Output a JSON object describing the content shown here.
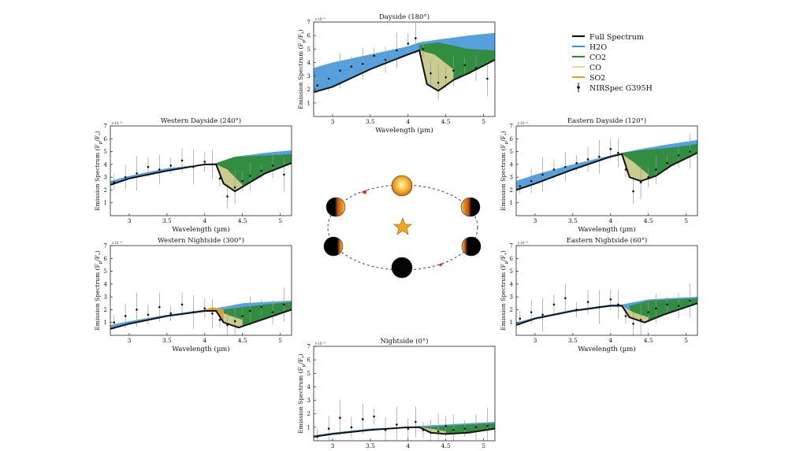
{
  "common": {
    "xlabel": "Wavelength (µm)",
    "ylabel": "Emission Spectrum (F",
    "ylabel_sub1": "p",
    "ylabel_mid": "/F",
    "ylabel_sub2": "*",
    "ylabel_end": ")",
    "exponent": "×10⁻⁴",
    "xticks": [
      "3",
      "3.5",
      "4",
      "4.5",
      "5"
    ],
    "yticks": [
      "1",
      "2",
      "3",
      "4",
      "5",
      "6",
      "7"
    ]
  },
  "legend": {
    "entries": [
      {
        "label": "Full Spectrum",
        "color": "#111111",
        "kind": "line"
      },
      {
        "label": "H2O",
        "color": "#3a8fd8",
        "kind": "line"
      },
      {
        "label": "CO2",
        "color": "#2e8b2e",
        "kind": "line"
      },
      {
        "label": "CO",
        "color": "#e6d9a0",
        "kind": "line"
      },
      {
        "label": "SO2",
        "color": "#e0a020",
        "kind": "line"
      },
      {
        "label": "NIRSpec G395H",
        "color": "#111111",
        "kind": "errorbar"
      }
    ]
  },
  "orbit": {
    "orbit_color": "#444444",
    "star_color": "#f0a820",
    "arrow_color": "#d04020"
  },
  "chart_data": [
    {
      "id": "dayside",
      "type": "area",
      "title": "Dayside (180°)",
      "xlim": [
        2.75,
        5.15
      ],
      "ylim": [
        0,
        7
      ],
      "full": {
        "x": [
          2.75,
          3.0,
          3.5,
          4.0,
          4.15,
          4.25,
          4.4,
          4.6,
          4.8,
          5.15
        ],
        "y": [
          1.8,
          2.2,
          3.5,
          4.6,
          4.9,
          2.4,
          1.9,
          2.7,
          3.2,
          4.2
        ]
      },
      "band_top": {
        "x": [
          2.75,
          3.0,
          3.5,
          4.0,
          4.15,
          4.4,
          4.8,
          5.15
        ],
        "y": [
          3.6,
          4.0,
          4.6,
          5.2,
          5.5,
          5.7,
          6.0,
          6.2
        ]
      },
      "co2_top": {
        "x": [
          4.15,
          4.4,
          4.8,
          5.15
        ],
        "y": [
          5.3,
          5.5,
          5.0,
          4.9
        ]
      },
      "co_top": {
        "x": [
          4.15,
          4.35,
          4.6
        ],
        "y": [
          4.9,
          4.6,
          3.5
        ]
      },
      "so2_top": null,
      "points": [
        [
          2.8,
          2.3
        ],
        [
          2.95,
          2.8
        ],
        [
          3.1,
          3.4
        ],
        [
          3.25,
          3.7
        ],
        [
          3.4,
          3.9
        ],
        [
          3.55,
          4.5
        ],
        [
          3.7,
          4.2
        ],
        [
          3.85,
          4.9
        ],
        [
          4.0,
          5.4
        ],
        [
          4.1,
          5.8
        ],
        [
          4.2,
          5.0
        ],
        [
          4.3,
          3.2
        ],
        [
          4.4,
          2.5
        ],
        [
          4.5,
          2.9
        ],
        [
          4.6,
          3.4
        ],
        [
          4.75,
          3.8
        ],
        [
          4.9,
          3.6
        ],
        [
          5.05,
          2.8
        ]
      ]
    },
    {
      "id": "western-dayside",
      "type": "area",
      "title": "Western Dayside (240°)",
      "xlim": [
        2.75,
        5.15
      ],
      "ylim": [
        0,
        7
      ],
      "full": {
        "x": [
          2.75,
          3.0,
          3.5,
          4.0,
          4.15,
          4.25,
          4.4,
          4.6,
          4.8,
          5.15
        ],
        "y": [
          2.4,
          2.9,
          3.5,
          4.0,
          4.0,
          2.5,
          1.9,
          2.6,
          3.3,
          4.1
        ]
      },
      "band_top": {
        "x": [
          2.75,
          3.0,
          3.5,
          4.0,
          4.15,
          4.4,
          4.8,
          5.15
        ],
        "y": [
          2.7,
          3.1,
          3.7,
          4.0,
          4.1,
          4.6,
          4.9,
          5.1
        ]
      },
      "co2_top": {
        "x": [
          4.15,
          4.4,
          4.8,
          5.15
        ],
        "y": [
          4.1,
          4.6,
          4.7,
          4.8
        ]
      },
      "co_top": {
        "x": [
          4.15,
          4.3,
          4.5
        ],
        "y": [
          4.0,
          3.6,
          2.4
        ]
      },
      "so2_top": null,
      "points": [
        [
          2.8,
          2.6
        ],
        [
          2.95,
          3.0
        ],
        [
          3.1,
          3.3
        ],
        [
          3.25,
          3.8
        ],
        [
          3.4,
          3.6
        ],
        [
          3.55,
          3.9
        ],
        [
          3.7,
          4.3
        ],
        [
          3.85,
          3.8
        ],
        [
          4.0,
          4.2
        ],
        [
          4.1,
          4.0
        ],
        [
          4.2,
          2.9
        ],
        [
          4.3,
          1.5
        ],
        [
          4.4,
          2.2
        ],
        [
          4.5,
          2.7
        ],
        [
          4.6,
          3.1
        ],
        [
          4.75,
          3.5
        ],
        [
          4.9,
          3.9
        ],
        [
          5.05,
          3.2
        ]
      ]
    },
    {
      "id": "eastern-dayside",
      "type": "area",
      "title": "Eastern Dayside (120°)",
      "xlim": [
        2.75,
        5.15
      ],
      "ylim": [
        0,
        7
      ],
      "full": {
        "x": [
          2.75,
          3.0,
          3.5,
          4.0,
          4.15,
          4.25,
          4.4,
          4.6,
          4.8,
          5.15
        ],
        "y": [
          2.0,
          2.5,
          3.6,
          4.6,
          4.8,
          3.0,
          2.7,
          3.1,
          3.9,
          4.9
        ]
      },
      "band_top": {
        "x": [
          2.75,
          3.0,
          3.5,
          4.0,
          4.15,
          4.4,
          4.8,
          5.15
        ],
        "y": [
          2.7,
          3.2,
          4.0,
          4.7,
          4.9,
          5.2,
          5.6,
          5.9
        ]
      },
      "co2_top": {
        "x": [
          4.15,
          4.4,
          4.8,
          5.15
        ],
        "y": [
          4.9,
          5.1,
          5.3,
          5.6
        ]
      },
      "co_top": {
        "x": [
          4.15,
          4.3,
          4.5
        ],
        "y": [
          4.8,
          4.2,
          3.2
        ]
      },
      "so2_top": null,
      "points": [
        [
          2.8,
          2.3
        ],
        [
          2.95,
          2.7
        ],
        [
          3.1,
          3.2
        ],
        [
          3.25,
          3.6
        ],
        [
          3.4,
          3.8
        ],
        [
          3.55,
          4.1
        ],
        [
          3.7,
          4.4
        ],
        [
          3.85,
          4.6
        ],
        [
          4.0,
          5.2
        ],
        [
          4.1,
          4.9
        ],
        [
          4.2,
          3.6
        ],
        [
          4.3,
          1.9
        ],
        [
          4.4,
          2.6
        ],
        [
          4.5,
          3.0
        ],
        [
          4.6,
          3.6
        ],
        [
          4.75,
          4.1
        ],
        [
          4.9,
          4.7
        ],
        [
          5.05,
          5.0
        ]
      ]
    },
    {
      "id": "western-nightside",
      "type": "area",
      "title": "Western Nightside (300°)",
      "xlim": [
        2.75,
        5.15
      ],
      "ylim": [
        0,
        7
      ],
      "full": {
        "x": [
          2.75,
          3.0,
          3.5,
          4.0,
          4.15,
          4.25,
          4.45,
          4.7,
          5.15
        ],
        "y": [
          0.5,
          0.9,
          1.5,
          1.9,
          1.9,
          1.0,
          0.6,
          1.1,
          2.0
        ]
      },
      "band_top": {
        "x": [
          2.75,
          3.0,
          3.5,
          4.0,
          4.15,
          4.5,
          4.8,
          5.15
        ],
        "y": [
          0.8,
          1.1,
          1.6,
          2.0,
          2.1,
          2.5,
          2.6,
          2.7
        ]
      },
      "co2_top": {
        "x": [
          4.25,
          4.5,
          4.8,
          5.15
        ],
        "y": [
          2.0,
          2.2,
          2.4,
          2.6
        ]
      },
      "co_top": {
        "x": [
          4.15,
          4.3,
          4.5
        ],
        "y": [
          2.0,
          1.6,
          1.2
        ]
      },
      "so2_top": {
        "x": [
          3.95,
          4.1,
          4.25
        ],
        "y": [
          1.9,
          2.2,
          2.0
        ]
      },
      "points": [
        [
          2.8,
          1.0
        ],
        [
          2.95,
          1.5
        ],
        [
          3.1,
          2.0
        ],
        [
          3.25,
          1.6
        ],
        [
          3.4,
          2.2
        ],
        [
          3.55,
          1.7
        ],
        [
          3.7,
          2.4
        ],
        [
          3.85,
          1.8
        ],
        [
          4.0,
          2.1
        ],
        [
          4.1,
          1.7
        ],
        [
          4.2,
          1.2
        ],
        [
          4.3,
          0.8
        ],
        [
          4.4,
          1.1
        ],
        [
          4.5,
          1.5
        ],
        [
          4.6,
          1.9
        ],
        [
          4.75,
          2.2
        ],
        [
          4.9,
          1.8
        ],
        [
          5.05,
          2.4
        ]
      ]
    },
    {
      "id": "eastern-nightside",
      "type": "area",
      "title": "Eastern Nightside (60°)",
      "xlim": [
        2.75,
        5.15
      ],
      "ylim": [
        0,
        7
      ],
      "full": {
        "x": [
          2.75,
          3.0,
          3.5,
          4.0,
          4.15,
          4.25,
          4.45,
          4.7,
          5.15
        ],
        "y": [
          0.8,
          1.3,
          1.9,
          2.3,
          2.3,
          1.4,
          1.0,
          1.6,
          2.5
        ]
      },
      "band_top": {
        "x": [
          2.75,
          3.0,
          3.5,
          4.0,
          4.15,
          4.5,
          4.8,
          5.15
        ],
        "y": [
          1.0,
          1.4,
          2.0,
          2.4,
          2.4,
          2.8,
          2.9,
          3.0
        ]
      },
      "co2_top": {
        "x": [
          4.25,
          4.5,
          4.8,
          5.15
        ],
        "y": [
          2.3,
          2.7,
          2.8,
          2.9
        ]
      },
      "co_top": {
        "x": [
          4.15,
          4.3,
          4.5
        ],
        "y": [
          2.3,
          1.8,
          1.4
        ]
      },
      "so2_top": null,
      "points": [
        [
          2.8,
          1.3
        ],
        [
          2.95,
          1.8
        ],
        [
          3.1,
          1.6
        ],
        [
          3.25,
          2.4
        ],
        [
          3.4,
          2.9
        ],
        [
          3.55,
          2.0
        ],
        [
          3.7,
          2.6
        ],
        [
          3.85,
          2.2
        ],
        [
          4.0,
          2.8
        ],
        [
          4.1,
          2.4
        ],
        [
          4.2,
          1.5
        ],
        [
          4.3,
          0.9
        ],
        [
          4.4,
          1.2
        ],
        [
          4.5,
          1.8
        ],
        [
          4.6,
          2.1
        ],
        [
          4.75,
          2.4
        ],
        [
          4.9,
          2.3
        ],
        [
          5.05,
          2.7
        ]
      ]
    },
    {
      "id": "nightside",
      "type": "area",
      "title": "Nightside (0°)",
      "xlim": [
        2.75,
        5.15
      ],
      "ylim": [
        0,
        7
      ],
      "full": {
        "x": [
          2.75,
          3.0,
          3.5,
          4.0,
          4.15,
          4.3,
          4.5,
          4.8,
          5.15
        ],
        "y": [
          0.3,
          0.5,
          0.8,
          1.0,
          1.0,
          0.6,
          0.5,
          0.6,
          0.9
        ]
      },
      "band_top": {
        "x": [
          2.75,
          3.0,
          3.5,
          4.0,
          4.15,
          4.5,
          4.8,
          5.15
        ],
        "y": [
          0.4,
          0.6,
          0.9,
          1.0,
          1.1,
          1.2,
          1.3,
          1.4
        ]
      },
      "co2_top": {
        "x": [
          4.15,
          4.5,
          4.8,
          5.15
        ],
        "y": [
          1.0,
          1.1,
          1.2,
          1.3
        ]
      },
      "co_top": {
        "x": [
          4.15,
          4.3,
          4.5
        ],
        "y": [
          1.0,
          0.9,
          0.7
        ]
      },
      "so2_top": null,
      "points": [
        [
          2.8,
          0.3
        ],
        [
          2.95,
          0.9
        ],
        [
          3.1,
          1.7
        ],
        [
          3.25,
          1.0
        ],
        [
          3.4,
          1.6
        ],
        [
          3.55,
          1.8
        ],
        [
          3.7,
          0.8
        ],
        [
          3.85,
          1.2
        ],
        [
          4.0,
          0.9
        ],
        [
          4.1,
          1.4
        ],
        [
          4.2,
          0.8
        ],
        [
          4.3,
          0.6
        ],
        [
          4.4,
          0.7
        ],
        [
          4.5,
          1.1
        ],
        [
          4.6,
          0.8
        ],
        [
          4.75,
          0.9
        ],
        [
          4.9,
          1.0
        ],
        [
          5.05,
          1.1
        ]
      ]
    }
  ]
}
